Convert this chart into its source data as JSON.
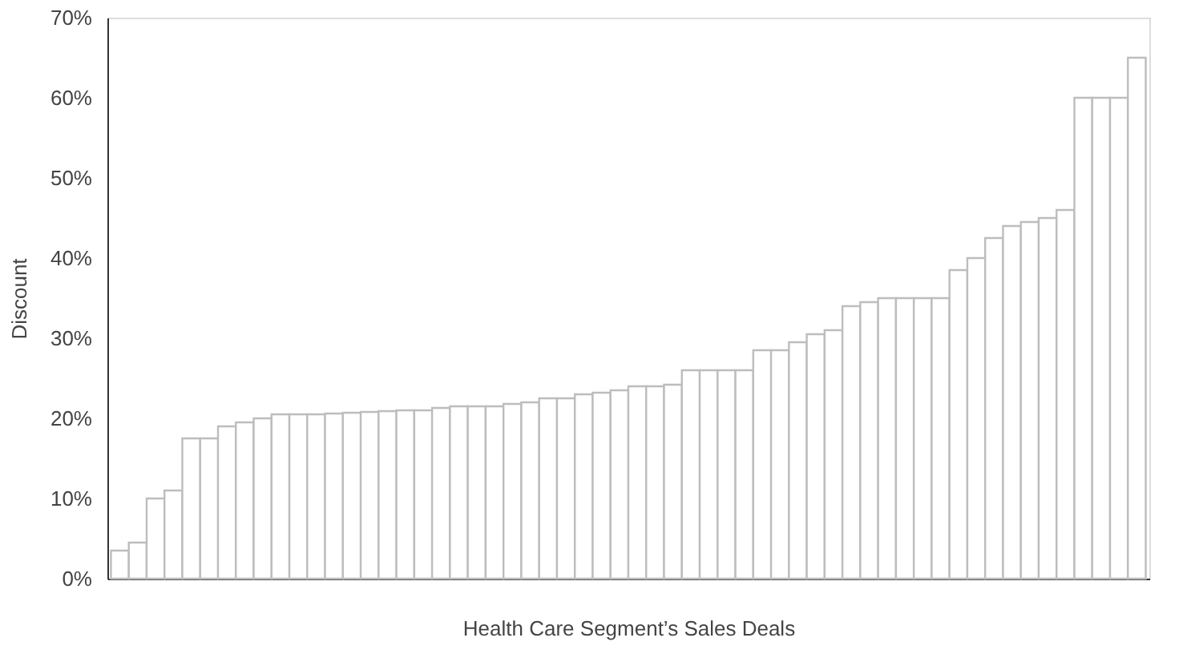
{
  "chart_data": {
    "type": "bar",
    "xlabel": "Health Care Segment’s Sales Deals",
    "ylabel": "Discount",
    "categories": [
      null,
      null,
      null,
      null,
      null,
      null,
      null,
      null,
      null,
      null,
      null,
      null,
      null,
      null,
      null,
      null,
      null,
      null,
      null,
      null,
      null,
      null,
      null,
      null,
      null,
      null,
      null,
      null,
      null,
      null,
      null,
      null,
      null,
      null,
      null,
      null,
      null,
      null,
      null,
      null,
      null,
      null,
      null,
      null,
      null,
      null,
      null,
      null,
      null,
      null,
      null,
      null,
      null,
      null,
      null,
      null,
      null,
      null
    ],
    "values": [
      3.5,
      4.5,
      10,
      11,
      17.5,
      17.5,
      19,
      19.5,
      20,
      20.5,
      20.5,
      20.5,
      20.6,
      20.7,
      20.8,
      20.9,
      21,
      21,
      21.3,
      21.5,
      21.5,
      21.5,
      21.8,
      22,
      22.5,
      22.5,
      23,
      23.2,
      23.5,
      24,
      24,
      24.2,
      26,
      26,
      26,
      26,
      28.5,
      28.5,
      29.5,
      30.5,
      31,
      34,
      34.5,
      35,
      35,
      35,
      35,
      38.5,
      40,
      42.5,
      44,
      44.5,
      45,
      46,
      60,
      60,
      60,
      65
    ],
    "color": "#ffffff",
    "ylim": [
      0,
      70
    ],
    "yticks": [
      {
        "value": 0,
        "label": "0%"
      },
      {
        "value": 10,
        "label": "10%"
      },
      {
        "value": 20,
        "label": "20%"
      },
      {
        "value": 30,
        "label": "30%"
      },
      {
        "value": 40,
        "label": "40%"
      },
      {
        "value": 50,
        "label": "50%"
      },
      {
        "value": 60,
        "label": "60%"
      },
      {
        "value": 70,
        "label": "70%"
      }
    ],
    "grid": false
  }
}
